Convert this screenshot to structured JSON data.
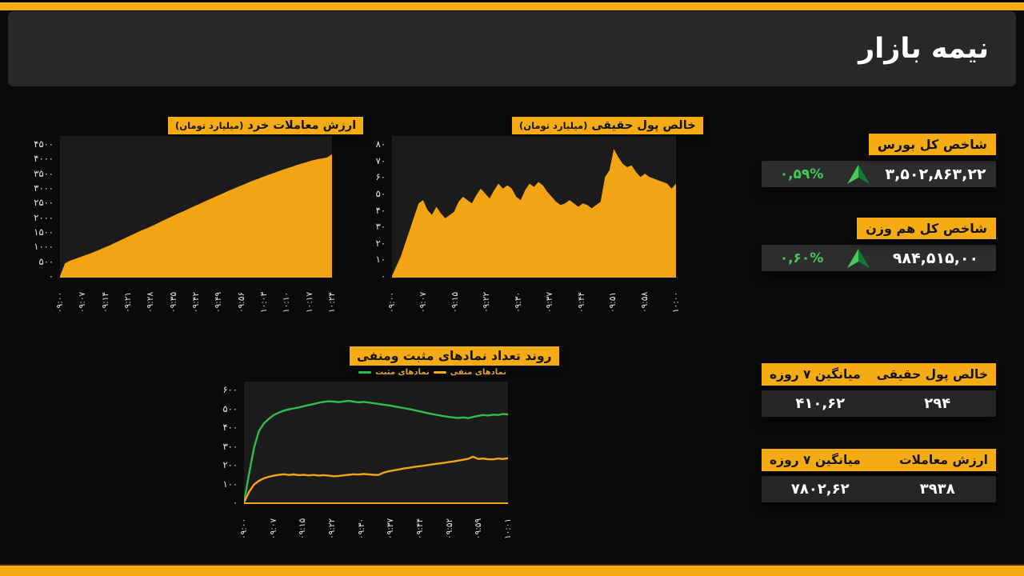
{
  "header": {
    "title": "نیمه بازار"
  },
  "theme": {
    "accent_orange": "#F5AC14",
    "area_orange": "#F2A414",
    "positive_green": "#45C85A",
    "arrow_green_light": "#4CC95D",
    "arrow_green_dark": "#157A36",
    "page_bg": "#0A0A0A",
    "header_panel_bg": "#282828",
    "plot_bg": "#1B1B1B",
    "value_bar_bg": "#2D2D2D",
    "tick_text": "#E6E6E6",
    "legend_text": "#D9A43C",
    "line_green": "#2EBD4E"
  },
  "chart_data": [
    {
      "type": "area",
      "title": "ارزش معاملات خرد",
      "unit": "(میلیارد تومان)",
      "ylabel": "",
      "xlabel": "",
      "ylim": [
        0,
        4500
      ],
      "grid": false,
      "color": "#F2A414",
      "yticks": [
        "۴۵۰۰",
        "۴۰۰۰",
        "۳۵۰۰",
        "۳۰۰۰",
        "۲۵۰۰",
        "۲۰۰۰",
        "۱۵۰۰",
        "۱۰۰۰",
        "۵۰۰",
        "۰"
      ],
      "xticks": [
        "۰۹:۰۰",
        "۰۹:۰۷",
        "۰۹:۱۴",
        "۰۹:۲۱",
        "۰۹:۲۸",
        "۰۹:۳۵",
        "۰۹:۴۲",
        "۰۹:۴۹",
        "۰۹:۵۶",
        "۱۰:۰۳",
        "۱۰:۱۰",
        "۱۰:۱۷",
        "۱۰:۲۴"
      ],
      "values": [
        0,
        430,
        520,
        580,
        640,
        700,
        760,
        830,
        900,
        970,
        1040,
        1120,
        1200,
        1280,
        1360,
        1440,
        1520,
        1590,
        1660,
        1740,
        1820,
        1900,
        1980,
        2060,
        2140,
        2210,
        2290,
        2370,
        2440,
        2520,
        2600,
        2670,
        2750,
        2820,
        2900,
        2970,
        3040,
        3110,
        3180,
        3250,
        3310,
        3380,
        3440,
        3500,
        3560,
        3620,
        3680,
        3730,
        3790,
        3840,
        3890,
        3940,
        3980,
        4010,
        4040,
        4150
      ]
    },
    {
      "type": "area",
      "title": "خالص پول حقیقی",
      "unit": "(میلیارد تومان)",
      "ylabel": "",
      "xlabel": "",
      "ylim": [
        0,
        80
      ],
      "grid": false,
      "color": "#F2A414",
      "yticks": [
        "۸۰",
        "۷۰",
        "۶۰",
        "۵۰",
        "۴۰",
        "۳۰",
        "۲۰",
        "۱۰",
        "۰"
      ],
      "xticks": [
        "۰۹:۰۰",
        "۰۹:۰۷",
        "۰۹:۱۵",
        "۰۹:۲۲",
        "۰۹:۳۰",
        "۰۹:۳۷",
        "۰۹:۴۴",
        "۰۹:۵۱",
        "۰۹:۵۸",
        "۱۰:۰۰"
      ],
      "values": [
        0,
        6,
        12,
        20,
        28,
        36,
        44,
        46,
        40,
        37,
        42,
        38,
        35,
        37,
        39,
        45,
        48,
        46,
        44,
        49,
        53,
        50,
        47,
        52,
        56,
        53,
        55,
        53,
        48,
        46,
        52,
        56,
        54,
        57,
        55,
        51,
        48,
        45,
        43,
        44,
        46,
        44,
        42,
        44,
        43,
        41,
        43,
        45,
        60,
        64,
        77,
        72,
        68,
        66,
        67,
        63,
        60,
        62,
        60,
        59,
        58,
        57,
        56,
        53,
        56
      ]
    },
    {
      "type": "line",
      "title": "روند تعداد نمادهای مثبت ومنفی",
      "unit": "",
      "ylabel": "",
      "xlabel": "",
      "ylim": [
        0,
        600
      ],
      "grid": false,
      "axis_line_color": "#F2A414",
      "legend_position": "top-right",
      "yticks": [
        "۶۰۰",
        "۵۰۰",
        "۴۰۰",
        "۳۰۰",
        "۲۰۰",
        "۱۰۰",
        "۰"
      ],
      "xticks": [
        "۰۹:۰۰",
        "۰۹:۰۷",
        "۰۹:۱۵",
        "۰۹:۲۲",
        "۰۹:۳۰",
        "۰۹:۳۷",
        "۰۹:۴۴",
        "۰۹:۵۲",
        "۰۹:۵۹",
        "۱۰:۰۱"
      ],
      "series": [
        {
          "name": "نمادهای مثبت",
          "color": "#2EBD4E",
          "values": [
            0,
            150,
            290,
            380,
            420,
            445,
            465,
            478,
            488,
            495,
            500,
            505,
            512,
            518,
            524,
            530,
            535,
            538,
            536,
            533,
            537,
            540,
            536,
            532,
            535,
            531,
            528,
            524,
            520,
            516,
            512,
            507,
            502,
            497,
            492,
            486,
            480,
            474,
            469,
            464,
            459,
            455,
            452,
            449,
            452,
            448,
            455,
            460,
            465,
            462,
            467,
            465,
            470,
            468
          ]
        },
        {
          "name": "نمادهای منفی",
          "color": "#F2A414",
          "values": [
            0,
            55,
            95,
            115,
            128,
            136,
            142,
            147,
            150,
            146,
            149,
            145,
            147,
            144,
            146,
            143,
            145,
            142,
            139,
            141,
            144,
            147,
            150,
            148,
            151,
            149,
            147,
            146,
            158,
            165,
            170,
            175,
            180,
            184,
            188,
            192,
            195,
            199,
            203,
            207,
            210,
            214,
            218,
            222,
            227,
            232,
            243,
            231,
            233,
            230,
            229,
            233,
            231,
            235
          ]
        }
      ]
    }
  ],
  "cards": {
    "index_cards": [
      {
        "title": "شاخص کل بورس",
        "value": "۳,۵۰۲,۸۶۳,۲۲",
        "change": "۰,۵۹%",
        "direction": "up"
      },
      {
        "title": "شاخص کل هم وزن",
        "value": "۹۸۴,۵۱۵,۰۰",
        "change": "۰,۶۰%",
        "direction": "up"
      }
    ],
    "stat_cards": [
      {
        "title": "خالص پول حقیقی",
        "subtitle": "میانگین ۷ روزه",
        "value": "۲۹۴",
        "avg": "۴۱۰,۶۲"
      },
      {
        "title": "ارزش معاملات",
        "subtitle": "میانگین ۷ روزه",
        "value": "۳۹۳۸",
        "avg": "۷۸۰۲,۶۲"
      }
    ]
  }
}
